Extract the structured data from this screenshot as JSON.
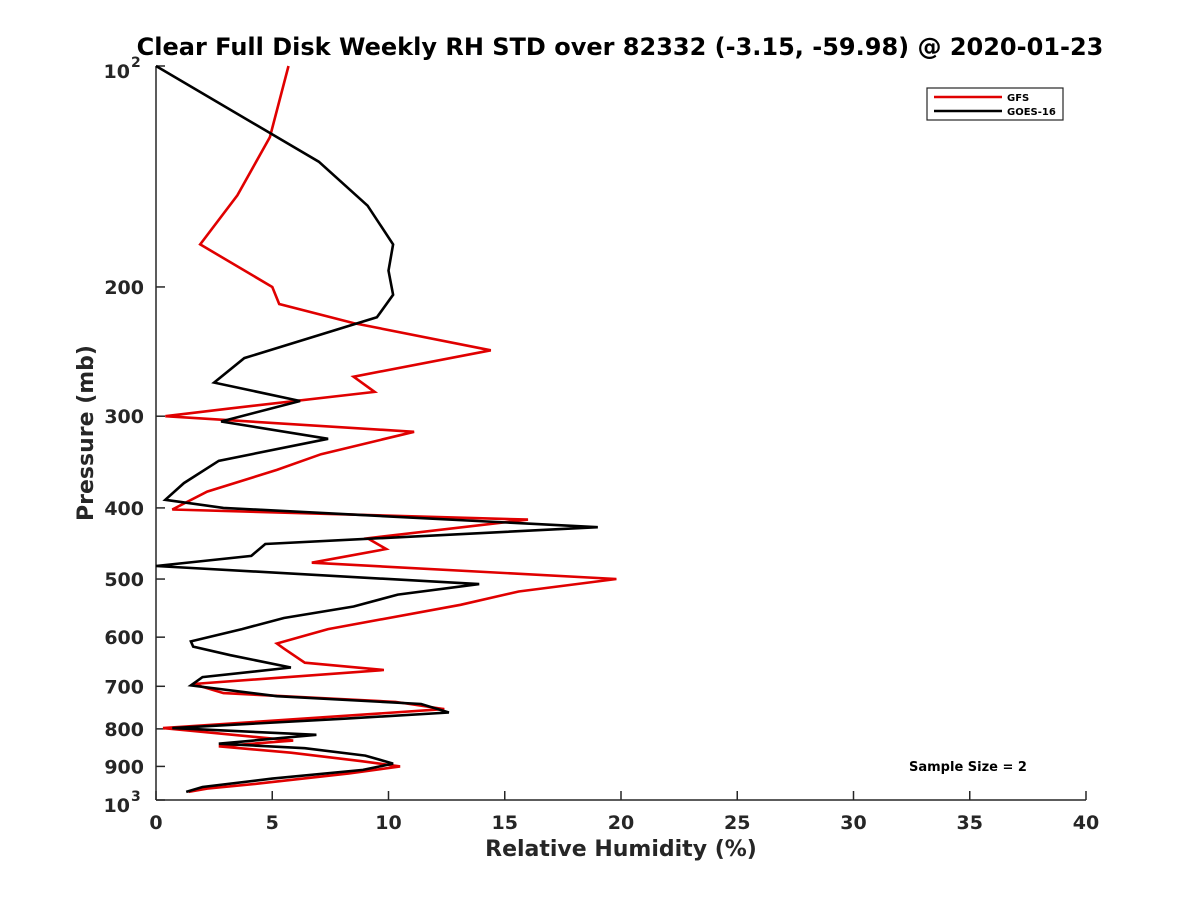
{
  "chart_data": {
    "type": "line",
    "title": "Clear Full Disk Weekly RH STD over 82332 (-3.15, -59.98) @ 2020-01-23",
    "xlabel": "Relative Humidity (%)",
    "ylabel": "Pressure (mb)",
    "xlim": [
      0,
      40
    ],
    "ylim": [
      100,
      1000
    ],
    "y_scale": "log",
    "y_reversed": true,
    "grid": false,
    "legend_position": "top-right",
    "x_ticks": [
      0,
      5,
      10,
      15,
      20,
      25,
      30,
      35,
      40
    ],
    "x_tick_labels": [
      "0",
      "5",
      "10",
      "15",
      "20",
      "25",
      "30",
      "35",
      "40"
    ],
    "y_ticks": [
      100,
      200,
      300,
      400,
      500,
      600,
      700,
      800,
      900,
      1000
    ],
    "y_tick_labels": [
      {
        "base": "10",
        "exp": "2"
      },
      {
        "base": "200",
        "exp": ""
      },
      {
        "base": "300",
        "exp": ""
      },
      {
        "base": "400",
        "exp": ""
      },
      {
        "base": "500",
        "exp": ""
      },
      {
        "base": "600",
        "exp": ""
      },
      {
        "base": "700",
        "exp": ""
      },
      {
        "base": "800",
        "exp": ""
      },
      {
        "base": "900",
        "exp": ""
      },
      {
        "base": "10",
        "exp": "3"
      }
    ],
    "annotation": "Sample Size = 2",
    "series": [
      {
        "name": "GFS",
        "color": "#e00000",
        "points": [
          [
            5.7,
            100
          ],
          [
            4.9,
            125
          ],
          [
            3.5,
            150
          ],
          [
            1.9,
            175
          ],
          [
            5.0,
            200
          ],
          [
            5.3,
            211
          ],
          [
            8.5,
            224
          ],
          [
            14.4,
            244
          ],
          [
            8.5,
            265
          ],
          [
            9.4,
            278
          ],
          [
            3.1,
            293
          ],
          [
            0.4,
            300
          ],
          [
            11.1,
            315
          ],
          [
            7.1,
            338
          ],
          [
            5.2,
            355
          ],
          [
            2.2,
            380
          ],
          [
            0.7,
            402
          ],
          [
            16.0,
            415
          ],
          [
            9.1,
            440
          ],
          [
            9.9,
            455
          ],
          [
            6.7,
            475
          ],
          [
            19.8,
            500
          ],
          [
            15.6,
            520
          ],
          [
            13.1,
            542
          ],
          [
            7.4,
            585
          ],
          [
            5.2,
            612
          ],
          [
            5.5,
            622
          ],
          [
            6.4,
            650
          ],
          [
            9.8,
            665
          ],
          [
            1.6,
            695
          ],
          [
            2.9,
            715
          ],
          [
            10.3,
            735
          ],
          [
            12.4,
            752
          ],
          [
            0.3,
            798
          ],
          [
            5.9,
            830
          ],
          [
            2.7,
            845
          ],
          [
            5.8,
            862
          ],
          [
            8.8,
            885
          ],
          [
            10.5,
            900
          ],
          [
            8.3,
            920
          ],
          [
            4.4,
            950
          ],
          [
            2.2,
            965
          ],
          [
            1.4,
            975
          ]
        ]
      },
      {
        "name": "GOES-16",
        "color": "#000000",
        "points": [
          [
            0.0,
            100
          ],
          [
            7.0,
            135
          ],
          [
            9.1,
            155
          ],
          [
            10.2,
            175
          ],
          [
            10.0,
            190
          ],
          [
            10.2,
            205
          ],
          [
            9.5,
            220
          ],
          [
            3.8,
            250
          ],
          [
            2.5,
            270
          ],
          [
            6.2,
            286
          ],
          [
            2.8,
            305
          ],
          [
            7.4,
            322
          ],
          [
            2.7,
            345
          ],
          [
            1.2,
            370
          ],
          [
            0.4,
            390
          ],
          [
            2.9,
            400
          ],
          [
            19.0,
            425
          ],
          [
            4.7,
            448
          ],
          [
            4.1,
            465
          ],
          [
            0.0,
            480
          ],
          [
            13.9,
            508
          ],
          [
            10.4,
            525
          ],
          [
            8.5,
            545
          ],
          [
            5.5,
            565
          ],
          [
            3.7,
            585
          ],
          [
            1.5,
            608
          ],
          [
            1.6,
            618
          ],
          [
            3.2,
            635
          ],
          [
            5.8,
            660
          ],
          [
            2.0,
            680
          ],
          [
            1.5,
            698
          ],
          [
            5.2,
            722
          ],
          [
            11.4,
            740
          ],
          [
            12.6,
            760
          ],
          [
            8.1,
            775
          ],
          [
            0.7,
            798
          ],
          [
            6.9,
            815
          ],
          [
            2.7,
            838
          ],
          [
            6.4,
            850
          ],
          [
            9.0,
            870
          ],
          [
            10.2,
            892
          ],
          [
            8.9,
            910
          ],
          [
            5.0,
            935
          ],
          [
            2.0,
            960
          ],
          [
            1.3,
            975
          ]
        ]
      }
    ]
  }
}
